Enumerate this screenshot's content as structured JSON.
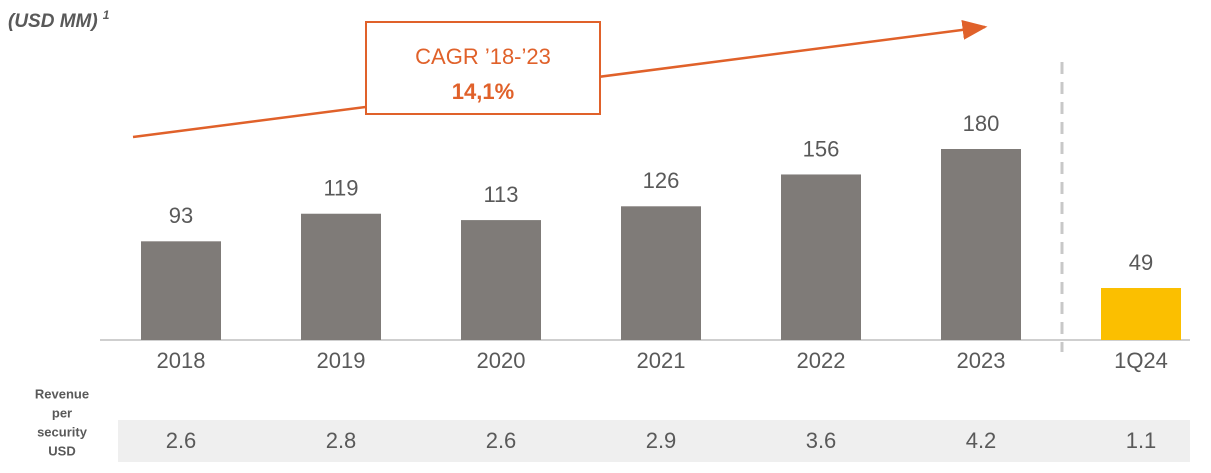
{
  "chart_data": {
    "type": "bar",
    "title": "(USD MM)",
    "title_note": "1",
    "categories": [
      "2018",
      "2019",
      "2020",
      "2021",
      "2022",
      "2023",
      "1Q24"
    ],
    "values": [
      93,
      119,
      113,
      126,
      156,
      180,
      49
    ],
    "colors": [
      "#7f7b78",
      "#7f7b78",
      "#7f7b78",
      "#7f7b78",
      "#7f7b78",
      "#7f7b78",
      "#fbbf00"
    ],
    "ylim": [
      0,
      180
    ],
    "annotation": {
      "text": "CAGR ’18-’23",
      "value": "14,1%"
    },
    "row_label": [
      "Revenue",
      "per",
      "security",
      "USD"
    ],
    "row_values": [
      2.6,
      2.8,
      2.6,
      2.9,
      3.6,
      4.2,
      1.1
    ]
  }
}
